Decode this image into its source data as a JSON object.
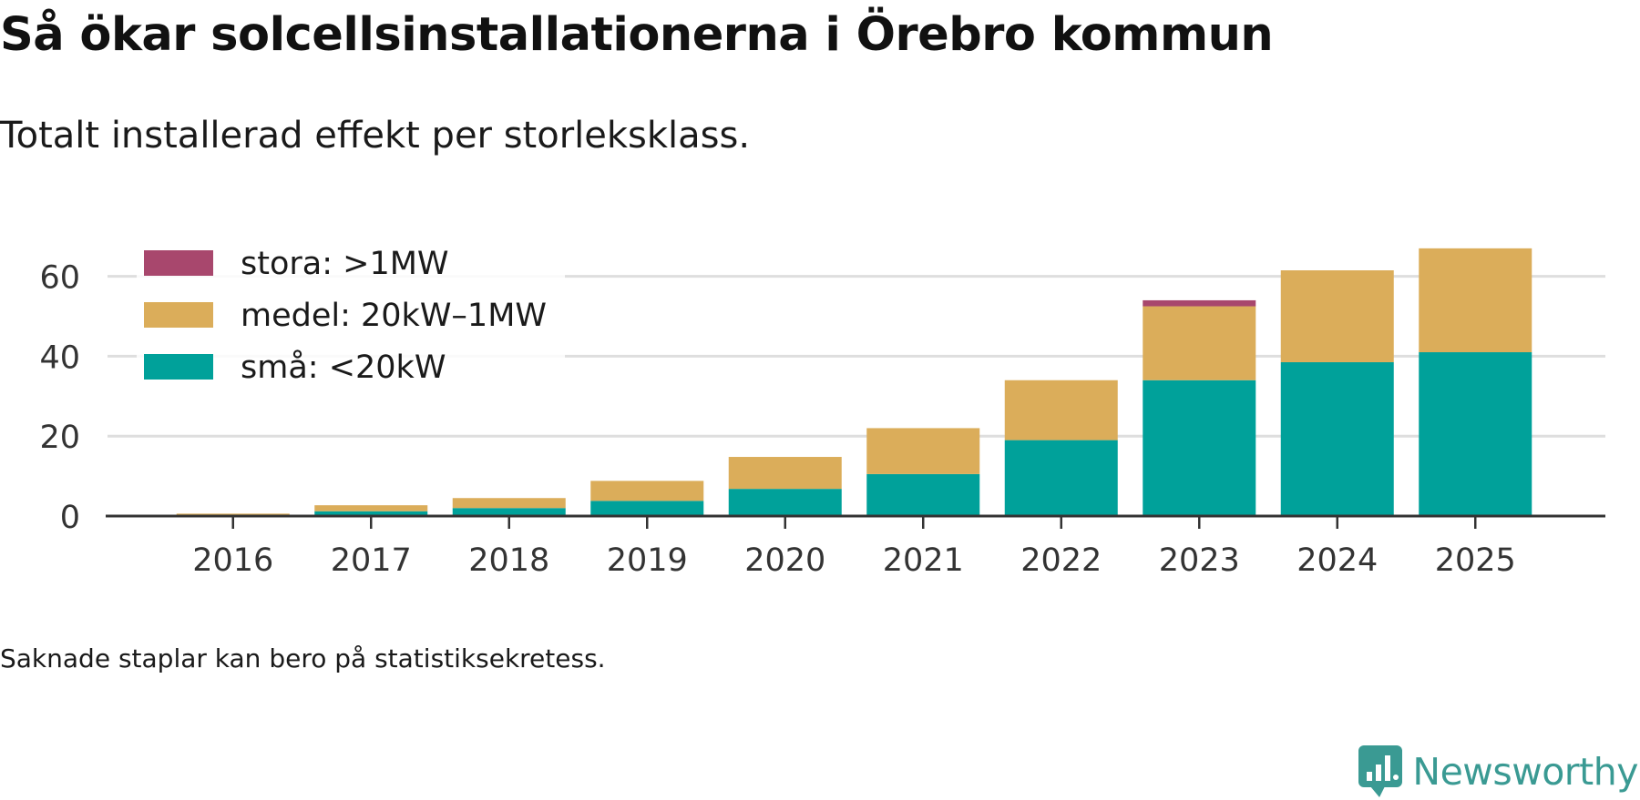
{
  "title": "Så ökar solcellsinstallationerna i Örebro kommun",
  "subtitle": "Totalt installerad effekt per storleksklass.",
  "footnote": "Saknade staplar kan bero på statistiksekretess.",
  "brand": {
    "name": "Newsworthy",
    "color": "#3a9a93"
  },
  "chart_data": {
    "type": "bar",
    "stacked": true,
    "title": "Så ökar solcellsinstallationerna i Örebro kommun",
    "subtitle": "Totalt installerad effekt per storleksklass.",
    "xlabel": "",
    "ylabel": "",
    "ylim": [
      0,
      70
    ],
    "yticks": [
      0,
      20,
      40,
      60
    ],
    "grid": true,
    "legend_position": "top-left",
    "categories": [
      "2016",
      "2017",
      "2018",
      "2019",
      "2020",
      "2021",
      "2022",
      "2023",
      "2024",
      "2025"
    ],
    "series": [
      {
        "name": "små: <20kW",
        "color": "#00a19a",
        "values": [
          0.2,
          1.2,
          2.0,
          3.8,
          6.8,
          10.5,
          19.0,
          34.0,
          38.5,
          41.0
        ]
      },
      {
        "name": "medel: 20kW–1MW",
        "color": "#dbad5a",
        "values": [
          0.4,
          1.5,
          2.5,
          5.0,
          8.0,
          11.5,
          15.0,
          18.5,
          23.0,
          26.0
        ]
      },
      {
        "name": "stora: >1MW",
        "color": "#a8476d",
        "values": [
          0,
          0,
          0,
          0,
          0,
          0,
          0,
          1.5,
          0,
          0
        ]
      }
    ]
  }
}
